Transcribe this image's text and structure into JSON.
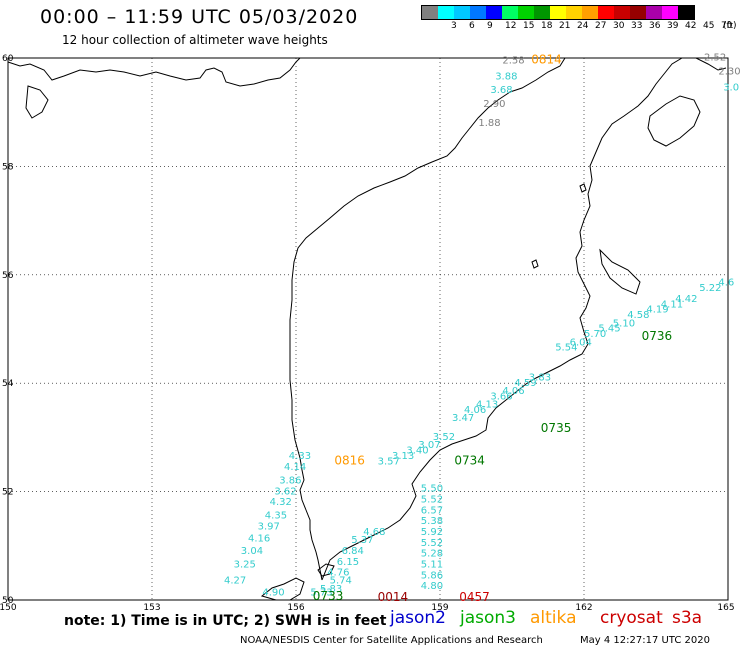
{
  "header": {
    "title": "00:00 – 11:59 UTC 05/03/2020",
    "subtitle": "12 hour collection of altimeter wave heights"
  },
  "colorbar": {
    "unit": "(ft)",
    "bins": [
      {
        "label": "",
        "color": "#808080"
      },
      {
        "label": "3",
        "color": "#00ffff"
      },
      {
        "label": "6",
        "color": "#00c8ff"
      },
      {
        "label": "9",
        "color": "#0078ff"
      },
      {
        "label": "12",
        "color": "#0000ff"
      },
      {
        "label": "15",
        "color": "#00ff64"
      },
      {
        "label": "18",
        "color": "#00d200"
      },
      {
        "label": "21",
        "color": "#009600"
      },
      {
        "label": "24",
        "color": "#ffff00"
      },
      {
        "label": "27",
        "color": "#ffd200"
      },
      {
        "label": "30",
        "color": "#ffa000"
      },
      {
        "label": "33",
        "color": "#ff0000"
      },
      {
        "label": "36",
        "color": "#c80000"
      },
      {
        "label": "39",
        "color": "#960000"
      },
      {
        "label": "42",
        "color": "#aa00aa"
      },
      {
        "label": "45",
        "color": "#ff00ff"
      },
      {
        "label": "70",
        "color": "#000000"
      }
    ]
  },
  "axes": {
    "lon_labels": [
      "150",
      "153",
      "156",
      "159",
      "162",
      "165"
    ],
    "lat_labels": [
      "60",
      "58",
      "56",
      "54",
      "52",
      "50"
    ]
  },
  "chart_data": {
    "type": "scatter",
    "xlim": [
      150,
      165
    ],
    "ylim": [
      50,
      60
    ],
    "grid": true,
    "tracks": [
      {
        "color": "#33cccc",
        "time": "0736",
        "time_color": "#007700",
        "points": [
          {
            "lon": 164.8,
            "lat": 55.8,
            "v": "4.6"
          },
          {
            "lon": 164.4,
            "lat": 55.7,
            "v": "5.22"
          },
          {
            "lon": 163.9,
            "lat": 55.5,
            "v": "4.42"
          },
          {
            "lon": 163.6,
            "lat": 55.4,
            "v": "4.11"
          },
          {
            "lon": 163.3,
            "lat": 55.3,
            "v": "4.19"
          },
          {
            "lon": 162.9,
            "lat": 55.2,
            "v": "4.58"
          },
          {
            "lon": 162.6,
            "lat": 55.05,
            "v": "5.10"
          },
          {
            "lon": 162.3,
            "lat": 54.95,
            "v": "5.45"
          },
          {
            "lon": 162.0,
            "lat": 54.85,
            "v": "5.70"
          },
          {
            "lon": 161.7,
            "lat": 54.7,
            "v": "6.04"
          },
          {
            "lon": 161.4,
            "lat": 54.6,
            "v": "5.54"
          },
          {
            "lon": 160.85,
            "lat": 54.05,
            "v": "3.83"
          },
          {
            "lon": 160.55,
            "lat": 53.95,
            "v": "4.59"
          },
          {
            "lon": 160.3,
            "lat": 53.8,
            "v": "4.06"
          },
          {
            "lon": 160.05,
            "lat": 53.7,
            "v": "3.66"
          },
          {
            "lon": 159.75,
            "lat": 53.55,
            "v": "4.13"
          },
          {
            "lon": 159.5,
            "lat": 53.45,
            "v": "4.06"
          },
          {
            "lon": 159.25,
            "lat": 53.3,
            "v": "3.47"
          },
          {
            "lon": 158.85,
            "lat": 52.95,
            "v": "3.52"
          },
          {
            "lon": 158.55,
            "lat": 52.8,
            "v": "3.07"
          },
          {
            "lon": 158.3,
            "lat": 52.7,
            "v": "3.40"
          },
          {
            "lon": 158.0,
            "lat": 52.6,
            "v": "3.13"
          },
          {
            "lon": 157.7,
            "lat": 52.5,
            "v": "3.57"
          }
        ]
      },
      {
        "color": "#33cccc",
        "time": "0733",
        "time_color": "#007700",
        "points": [
          {
            "lon": 157.4,
            "lat": 51.2,
            "v": "4.68"
          },
          {
            "lon": 157.15,
            "lat": 51.05,
            "v": "5.37"
          },
          {
            "lon": 156.95,
            "lat": 50.85,
            "v": "6.84"
          },
          {
            "lon": 156.85,
            "lat": 50.65,
            "v": "6.15"
          },
          {
            "lon": 156.65,
            "lat": 50.45,
            "v": "4.76"
          },
          {
            "lon": 156.7,
            "lat": 50.3,
            "v": "5.74"
          },
          {
            "lon": 156.5,
            "lat": 50.15,
            "v": "5.83"
          },
          {
            "lon": 156.3,
            "lat": 50.08,
            "v": "5.73"
          }
        ]
      },
      {
        "color": "#33cccc",
        "time": "0734",
        "time_color": "#007700",
        "points": []
      },
      {
        "color": "#33cccc",
        "time": "0735",
        "time_color": "#007700",
        "points": []
      },
      {
        "color": "#33cccc",
        "time": "0457",
        "time_color": "#cc0000",
        "points": [
          {
            "lon": 158.6,
            "lat": 52.0,
            "v": "5.50"
          },
          {
            "lon": 158.6,
            "lat": 51.8,
            "v": "5.52"
          },
          {
            "lon": 158.6,
            "lat": 51.6,
            "v": "6.57"
          },
          {
            "lon": 158.6,
            "lat": 51.4,
            "v": "5.38"
          },
          {
            "lon": 158.6,
            "lat": 51.2,
            "v": "5.92"
          },
          {
            "lon": 158.6,
            "lat": 51.0,
            "v": "5.52"
          },
          {
            "lon": 158.6,
            "lat": 50.8,
            "v": "5.28"
          },
          {
            "lon": 158.6,
            "lat": 50.6,
            "v": "5.11"
          },
          {
            "lon": 158.6,
            "lat": 50.4,
            "v": "5.86"
          },
          {
            "lon": 158.6,
            "lat": 50.2,
            "v": "4.80"
          }
        ]
      },
      {
        "color": "#33cccc",
        "time": "0816",
        "time_color": "#ff9900",
        "points": [
          {
            "lon": 155.85,
            "lat": 52.6,
            "v": "4.33"
          },
          {
            "lon": 155.75,
            "lat": 52.4,
            "v": "4.14"
          },
          {
            "lon": 155.65,
            "lat": 52.15,
            "v": "3.86"
          },
          {
            "lon": 155.55,
            "lat": 51.95,
            "v": "3.62"
          },
          {
            "lon": 155.45,
            "lat": 51.75,
            "v": "4.32"
          },
          {
            "lon": 155.35,
            "lat": 51.5,
            "v": "4.35"
          },
          {
            "lon": 155.2,
            "lat": 51.3,
            "v": "3.97"
          },
          {
            "lon": 155.0,
            "lat": 51.08,
            "v": "4.16"
          },
          {
            "lon": 154.85,
            "lat": 50.85,
            "v": "3.04"
          },
          {
            "lon": 154.7,
            "lat": 50.6,
            "v": "3.25"
          },
          {
            "lon": 154.5,
            "lat": 50.3,
            "v": "4.27"
          },
          {
            "lon": 155.3,
            "lat": 50.08,
            "v": "4.90"
          }
        ]
      },
      {
        "color": "#33cccc",
        "time": "0814",
        "time_color": "#ff9900",
        "points": [
          {
            "lon": 160.15,
            "lat": 59.6,
            "v": "3.88"
          },
          {
            "lon": 160.05,
            "lat": 59.35,
            "v": "3.68"
          },
          {
            "lon": 159.9,
            "lat": 59.1,
            "v": "2.90",
            "color": "#808080"
          },
          {
            "lon": 159.8,
            "lat": 58.75,
            "v": "1.88",
            "color": "#808080"
          },
          {
            "lon": 160.3,
            "lat": 59.9,
            "v": "2.58",
            "color": "#808080"
          }
        ]
      },
      {
        "color": "#33cccc",
        "time": "0014",
        "time_color": "#990000",
        "points": []
      },
      {
        "color": "#808080",
        "time": "",
        "time_color": "#808080",
        "points": [
          {
            "lon": 164.5,
            "lat": 59.95,
            "v": "2.52"
          },
          {
            "lon": 164.8,
            "lat": 59.7,
            "v": "2.30"
          },
          {
            "lon": 164.9,
            "lat": 59.4,
            "v": "3.0",
            "color": "#33cccc"
          }
        ]
      }
    ],
    "time_labels": [
      {
        "text": "0814",
        "lon": 160.9,
        "lat": 59.9,
        "color": "#ff9900"
      },
      {
        "text": "0736",
        "lon": 163.2,
        "lat": 54.8,
        "color": "#007700"
      },
      {
        "text": "0735",
        "lon": 161.1,
        "lat": 53.1,
        "color": "#007700"
      },
      {
        "text": "0734",
        "lon": 159.3,
        "lat": 52.5,
        "color": "#007700"
      },
      {
        "text": "0816",
        "lon": 156.8,
        "lat": 52.5,
        "color": "#ff9900"
      },
      {
        "text": "0733",
        "lon": 156.35,
        "lat": 50.0,
        "color": "#007700"
      },
      {
        "text": "0014",
        "lon": 157.7,
        "lat": 49.98,
        "color": "#990000"
      },
      {
        "text": "0457",
        "lon": 159.4,
        "lat": 49.98,
        "color": "#cc0000"
      }
    ]
  },
  "footer": {
    "note": "note: 1) Time is in UTC; 2) SWH is in feet",
    "satellites": [
      {
        "name": "jason2",
        "color": "#0000cc"
      },
      {
        "name": "jason3",
        "color": "#00aa00"
      },
      {
        "name": "altika",
        "color": "#ff9900"
      },
      {
        "name": "cryosat",
        "color": "#cc0000"
      },
      {
        "name": "s3a",
        "color": "#cc0000"
      }
    ],
    "credit": "NOAA/NESDIS Center for Satellite Applications and Research",
    "timestamp": "May  4 12:27:17 UTC 2020"
  }
}
